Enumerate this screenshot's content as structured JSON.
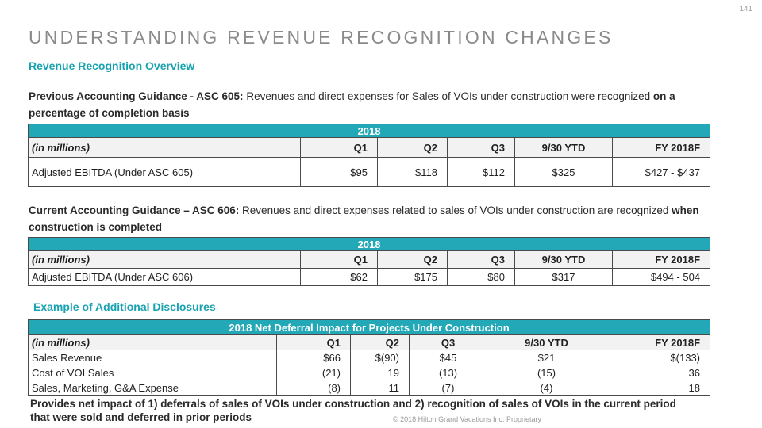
{
  "page_number": "141",
  "title": "UNDERSTANDING REVENUE RECOGNITION CHANGES",
  "subtitle": "Revenue Recognition Overview",
  "section1": {
    "lead": "Previous Accounting Guidance - ASC 605:",
    "text": "  Revenues and direct expenses for Sales of VOIs under construction were recognized ",
    "emphasis": "on a percentage of completion basis"
  },
  "table1": {
    "band": "2018",
    "headers": [
      "(in millions)",
      "Q1",
      "Q2",
      "Q3",
      "9/30 YTD",
      "FY 2018F"
    ],
    "row": [
      "Adjusted EBITDA (Under ASC 605)",
      "$95",
      "$118",
      "$112",
      "$325",
      "$427 - $437"
    ]
  },
  "section2": {
    "lead": "Current Accounting Guidance – ASC 606:",
    "text": "  Revenues and direct expenses related to sales of VOIs under construction are recognized ",
    "emphasis": "when construction is completed"
  },
  "table2": {
    "band": "2018",
    "headers": [
      "(in millions)",
      "Q1",
      "Q2",
      "Q3",
      "9/30 YTD",
      "FY 2018F"
    ],
    "row": [
      "Adjusted EBITDA (Under ASC 606)",
      "$62",
      "$175",
      "$80",
      "$317",
      "$494 - 504"
    ]
  },
  "example_title": "Example of Additional Disclosures",
  "table3": {
    "band": "2018 Net Deferral Impact for Projects Under Construction",
    "headers": [
      "(in millions)",
      "Q1",
      "Q2",
      "Q3",
      "9/30 YTD",
      "FY 2018F"
    ],
    "rows": [
      [
        "Sales Revenue",
        "$66",
        "$(90)",
        "$45",
        "$21",
        "$(133)"
      ],
      [
        "Cost of VOI Sales",
        "(21)",
        "19",
        "(13)",
        "(15)",
        "36"
      ],
      [
        "Sales, Marketing, G&A Expense",
        "(8)",
        "11",
        "(7)",
        "(4)",
        "18"
      ]
    ]
  },
  "footnote": "Provides net impact of 1) deferrals of sales of VOIs under construction and 2) recognition of sales of VOIs in the current period that were sold and deferred in prior periods",
  "copyright": "© 2018 Hilton Grand Vacations Inc. Proprietary"
}
